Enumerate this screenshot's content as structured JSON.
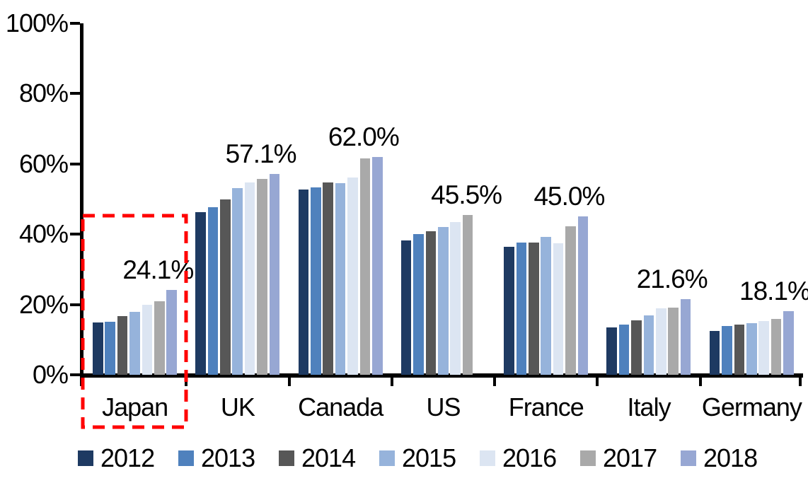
{
  "chart_data": {
    "type": "bar",
    "title": "",
    "categories": [
      "Japan",
      "UK",
      "Canada",
      "US",
      "France",
      "Italy",
      "Germany"
    ],
    "series": [
      {
        "name": "2012",
        "color": "#1E3A62",
        "values": [
          14.8,
          46.3,
          52.8,
          38.2,
          36.4,
          13.4,
          12.4
        ]
      },
      {
        "name": "2013",
        "color": "#4F81BD",
        "values": [
          15.0,
          47.6,
          53.3,
          40.0,
          37.7,
          14.3,
          13.8
        ]
      },
      {
        "name": "2014",
        "color": "#575757",
        "values": [
          16.6,
          49.9,
          54.7,
          40.9,
          37.6,
          15.5,
          14.3
        ]
      },
      {
        "name": "2015",
        "color": "#96B3DB",
        "values": [
          18.0,
          53.2,
          54.5,
          42.1,
          39.3,
          16.9,
          14.7
        ]
      },
      {
        "name": "2016",
        "color": "#DCE5F2",
        "values": [
          20.0,
          54.8,
          56.1,
          43.5,
          37.4,
          19.0,
          15.3
        ]
      },
      {
        "name": "2017",
        "color": "#A9A9A9",
        "values": [
          21.0,
          55.8,
          61.5,
          45.5,
          42.3,
          19.2,
          15.8
        ]
      },
      {
        "name": "2018",
        "color": "#97A7D3",
        "values": [
          24.1,
          57.1,
          62.0,
          null,
          45.0,
          21.6,
          18.1
        ]
      }
    ],
    "data_labels": [
      "24.1%",
      "57.1%",
      "62.0%",
      "45.5%",
      "45.0%",
      "21.6%",
      "18.1%"
    ],
    "y_axis": {
      "min": 0,
      "max": 100,
      "ticks": [
        "0%",
        "20%",
        "40%",
        "60%",
        "80%",
        "100%"
      ]
    },
    "x_axis": {
      "label": ""
    },
    "grid": false,
    "legend": {
      "position": "bottom",
      "entries": [
        "2012",
        "2013",
        "2014",
        "2015",
        "2016",
        "2017",
        "2018"
      ]
    },
    "annotations": {
      "highlight_box": {
        "category": "Japan",
        "color": "#FF0000",
        "style": "dashed"
      }
    }
  },
  "colors": {
    "background": "#FFFFFF",
    "axis": "#000000",
    "text": "#000000",
    "highlight": "#FF0000"
  }
}
